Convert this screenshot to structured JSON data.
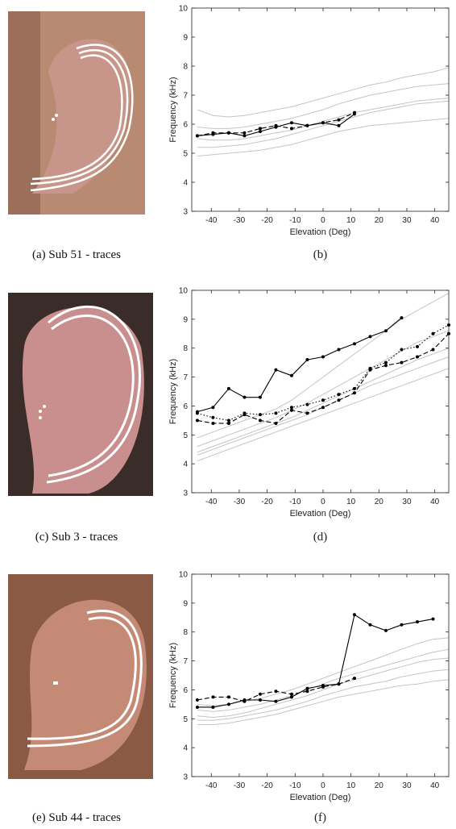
{
  "photos": [
    {
      "caption": "(a) Sub 51 - traces"
    },
    {
      "caption": "(c) Sub 3 - traces"
    },
    {
      "caption": "(e) Sub 44 - traces"
    }
  ],
  "chart_data": [
    {
      "type": "line",
      "caption": "(b)",
      "xlabel": "Elevation (Deg)",
      "ylabel": "Frequency (kHz)",
      "xlim": [
        -47,
        45
      ],
      "ylim": [
        3,
        10
      ],
      "xticks": [
        -40,
        -30,
        -20,
        -10,
        0,
        10,
        20,
        30,
        40
      ],
      "yticks": [
        3,
        4,
        5,
        6,
        7,
        8,
        9,
        10
      ],
      "x": [
        -45,
        -39.375,
        -33.75,
        -28.125,
        -22.5,
        -16.875,
        -11.25,
        -5.625,
        0,
        5.625,
        11.25,
        16.875,
        22.5,
        28.125,
        33.75,
        39.375,
        45
      ],
      "series": [
        {
          "color": "#c4c4c4",
          "style": "solid",
          "values": [
            4.9,
            4.95,
            5.0,
            5.05,
            5.1,
            5.2,
            5.3,
            5.45,
            5.6,
            5.75,
            5.85,
            5.95,
            6.0,
            6.05,
            6.1,
            6.15,
            6.2
          ]
        },
        {
          "color": "#c4c4c4",
          "style": "solid",
          "values": [
            6.5,
            6.3,
            6.25,
            6.3,
            6.4,
            6.5,
            6.6,
            6.75,
            6.9,
            7.05,
            7.2,
            7.35,
            7.45,
            7.6,
            7.7,
            7.8,
            7.95
          ]
        },
        {
          "color": "#c4c4c4",
          "style": "solid",
          "values": [
            5.5,
            5.45,
            5.45,
            5.5,
            5.6,
            5.7,
            5.8,
            5.95,
            6.1,
            6.25,
            6.4,
            6.5,
            6.6,
            6.7,
            6.8,
            6.85,
            6.9
          ]
        },
        {
          "color": "#c4c4c4",
          "style": "solid",
          "values": [
            5.2,
            5.2,
            5.25,
            5.3,
            5.4,
            5.5,
            5.65,
            5.8,
            5.95,
            6.1,
            6.25,
            6.4,
            6.5,
            6.6,
            6.7,
            6.75,
            6.8
          ]
        },
        {
          "color": "#c4c4c4",
          "style": "solid",
          "values": [
            5.9,
            5.85,
            5.85,
            5.9,
            6.0,
            6.1,
            6.2,
            6.35,
            6.5,
            6.7,
            6.85,
            7.0,
            7.1,
            7.2,
            7.3,
            7.35,
            7.4
          ]
        },
        {
          "color": "#000000",
          "style": "solid",
          "markers": true,
          "values": [
            5.6,
            5.65,
            5.7,
            5.6,
            5.75,
            5.9,
            6.05,
            5.95,
            6.05,
            5.95,
            6.35,
            null,
            null,
            null,
            null,
            null,
            null
          ]
        },
        {
          "color": "#000000",
          "style": "dashed",
          "markers": true,
          "values": [
            5.6,
            5.7,
            5.7,
            5.7,
            5.85,
            5.95,
            5.85,
            5.95,
            6.05,
            6.15,
            6.4,
            null,
            null,
            null,
            null,
            null,
            null
          ]
        }
      ]
    },
    {
      "type": "line",
      "caption": "(d)",
      "xlabel": "Elevation (Deg)",
      "ylabel": "Frequency (kHz)",
      "xlim": [
        -47,
        45
      ],
      "ylim": [
        3,
        10
      ],
      "xticks": [
        -40,
        -30,
        -20,
        -10,
        0,
        10,
        20,
        30,
        40
      ],
      "yticks": [
        3,
        4,
        5,
        6,
        7,
        8,
        9,
        10
      ],
      "x": [
        -45,
        -39.375,
        -33.75,
        -28.125,
        -22.5,
        -16.875,
        -11.25,
        -5.625,
        0,
        5.625,
        11.25,
        16.875,
        22.5,
        28.125,
        33.75,
        39.375,
        45
      ],
      "series": [
        {
          "color": "#c4c4c4",
          "style": "solid",
          "values": [
            4.1,
            4.3,
            4.5,
            4.7,
            4.9,
            5.1,
            5.3,
            5.5,
            5.7,
            5.9,
            6.1,
            6.3,
            6.5,
            6.7,
            6.9,
            7.1,
            7.3
          ]
        },
        {
          "color": "#c4c4c4",
          "style": "solid",
          "values": [
            4.9,
            5.1,
            5.3,
            5.5,
            5.7,
            5.9,
            6.2,
            6.6,
            7.0,
            7.4,
            7.8,
            8.2,
            8.6,
            9.0,
            9.3,
            9.6,
            9.9
          ]
        },
        {
          "color": "#c4c4c4",
          "style": "solid",
          "values": [
            4.4,
            4.6,
            4.8,
            5.0,
            5.2,
            5.4,
            5.6,
            5.85,
            6.1,
            6.35,
            6.6,
            6.85,
            7.1,
            7.35,
            7.6,
            7.8,
            8.0
          ]
        },
        {
          "color": "#c4c4c4",
          "style": "solid",
          "values": [
            4.6,
            4.8,
            5.0,
            5.2,
            5.4,
            5.6,
            5.85,
            6.1,
            6.4,
            6.7,
            7.0,
            7.3,
            7.6,
            7.9,
            8.2,
            8.4,
            8.6
          ]
        },
        {
          "color": "#c4c4c4",
          "style": "solid",
          "values": [
            4.3,
            4.5,
            4.7,
            4.9,
            5.1,
            5.3,
            5.5,
            5.7,
            5.95,
            6.2,
            6.45,
            6.7,
            6.9,
            7.1,
            7.3,
            7.5,
            7.7
          ]
        },
        {
          "color": "#000000",
          "style": "solid",
          "markers": true,
          "values": [
            5.8,
            5.95,
            6.6,
            6.3,
            6.3,
            7.25,
            7.05,
            7.6,
            7.7,
            7.95,
            8.15,
            8.4,
            8.6,
            9.05,
            null,
            null,
            null
          ]
        },
        {
          "color": "#000000",
          "style": "dotted",
          "markers": true,
          "values": [
            5.75,
            5.6,
            5.5,
            5.75,
            5.7,
            5.75,
            5.95,
            6.05,
            6.2,
            6.4,
            6.6,
            7.3,
            7.5,
            7.95,
            8.05,
            8.5,
            8.8
          ]
        },
        {
          "color": "#000000",
          "style": "dashed",
          "markers": true,
          "values": [
            5.5,
            5.4,
            5.4,
            5.7,
            5.5,
            5.4,
            5.85,
            5.75,
            5.95,
            6.2,
            6.45,
            7.25,
            7.4,
            7.5,
            7.7,
            7.95,
            8.5
          ]
        }
      ]
    },
    {
      "type": "line",
      "caption": "(f)",
      "xlabel": "Elevation (Deg)",
      "ylabel": "Frequency (kHz)",
      "xlim": [
        -47,
        45
      ],
      "ylim": [
        3,
        10
      ],
      "xticks": [
        -40,
        -30,
        -20,
        -10,
        0,
        10,
        20,
        30,
        40
      ],
      "yticks": [
        3,
        4,
        5,
        6,
        7,
        8,
        9,
        10
      ],
      "x": [
        -45,
        -39.375,
        -33.75,
        -28.125,
        -22.5,
        -16.875,
        -11.25,
        -5.625,
        0,
        5.625,
        11.25,
        16.875,
        22.5,
        28.125,
        33.75,
        39.375,
        45
      ],
      "series": [
        {
          "color": "#c4c4c4",
          "style": "solid",
          "values": [
            4.8,
            4.8,
            4.85,
            4.95,
            5.05,
            5.15,
            5.3,
            5.45,
            5.6,
            5.75,
            5.85,
            5.95,
            6.05,
            6.15,
            6.2,
            6.3,
            6.35
          ]
        },
        {
          "color": "#c4c4c4",
          "style": "solid",
          "values": [
            5.5,
            5.45,
            5.5,
            5.6,
            5.7,
            5.85,
            6.0,
            6.2,
            6.4,
            6.6,
            6.8,
            7.0,
            7.2,
            7.4,
            7.6,
            7.75,
            7.8
          ]
        },
        {
          "color": "#c4c4c4",
          "style": "solid",
          "values": [
            5.1,
            5.05,
            5.1,
            5.2,
            5.35,
            5.5,
            5.65,
            5.8,
            6.0,
            6.2,
            6.35,
            6.5,
            6.65,
            6.8,
            6.95,
            7.05,
            7.1
          ]
        },
        {
          "color": "#c4c4c4",
          "style": "solid",
          "values": [
            5.3,
            5.25,
            5.3,
            5.4,
            5.5,
            5.65,
            5.8,
            6.0,
            6.2,
            6.4,
            6.55,
            6.7,
            6.85,
            7.0,
            7.15,
            7.3,
            7.4
          ]
        },
        {
          "color": "#c4c4c4",
          "style": "solid",
          "values": [
            4.95,
            4.95,
            5.0,
            5.1,
            5.2,
            5.3,
            5.45,
            5.6,
            5.8,
            5.95,
            6.1,
            6.2,
            6.3,
            6.45,
            6.55,
            6.65,
            6.7
          ]
        },
        {
          "color": "#000000",
          "style": "solid",
          "markers": true,
          "values": [
            5.4,
            5.4,
            5.5,
            5.65,
            5.65,
            5.6,
            5.75,
            6.05,
            6.15,
            6.2,
            8.6,
            8.25,
            8.05,
            8.25,
            8.35,
            8.45,
            null
          ]
        },
        {
          "color": "#000000",
          "style": "dashed",
          "markers": true,
          "values": [
            5.65,
            5.75,
            5.75,
            5.6,
            5.85,
            5.95,
            5.85,
            5.95,
            6.1,
            6.2,
            6.4,
            null,
            null,
            null,
            null,
            null,
            null
          ]
        }
      ]
    }
  ]
}
